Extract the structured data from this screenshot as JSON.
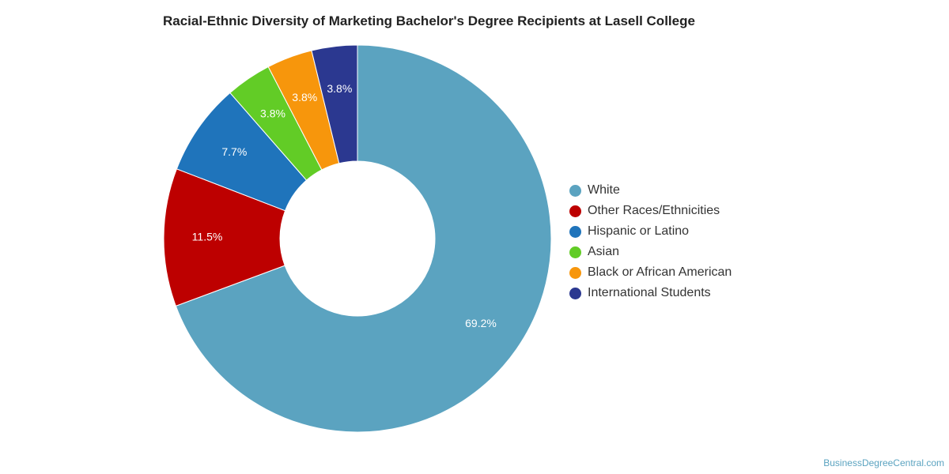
{
  "chart_data": {
    "type": "pie",
    "title": "Racial-Ethnic Diversity of Marketing Bachelor's Degree Recipients at Lasell College",
    "donut": true,
    "legend_position": "right",
    "slices": [
      {
        "name": "White",
        "value": 69.2,
        "label": "69.2%",
        "color": "#5ba3c0"
      },
      {
        "name": "Other Races/Ethnicities",
        "value": 11.5,
        "label": "11.5%",
        "color": "#bd0000"
      },
      {
        "name": "Hispanic or Latino",
        "value": 7.7,
        "label": "7.7%",
        "color": "#1f74bb"
      },
      {
        "name": "Asian",
        "value": 3.8,
        "label": "3.8%",
        "color": "#62cc26"
      },
      {
        "name": "Black or African American",
        "value": 3.8,
        "label": "3.8%",
        "color": "#f7960c"
      },
      {
        "name": "International Students",
        "value": 3.8,
        "label": "3.8%",
        "color": "#2b3890"
      }
    ]
  },
  "watermark": "BusinessDegreeCentral.com"
}
